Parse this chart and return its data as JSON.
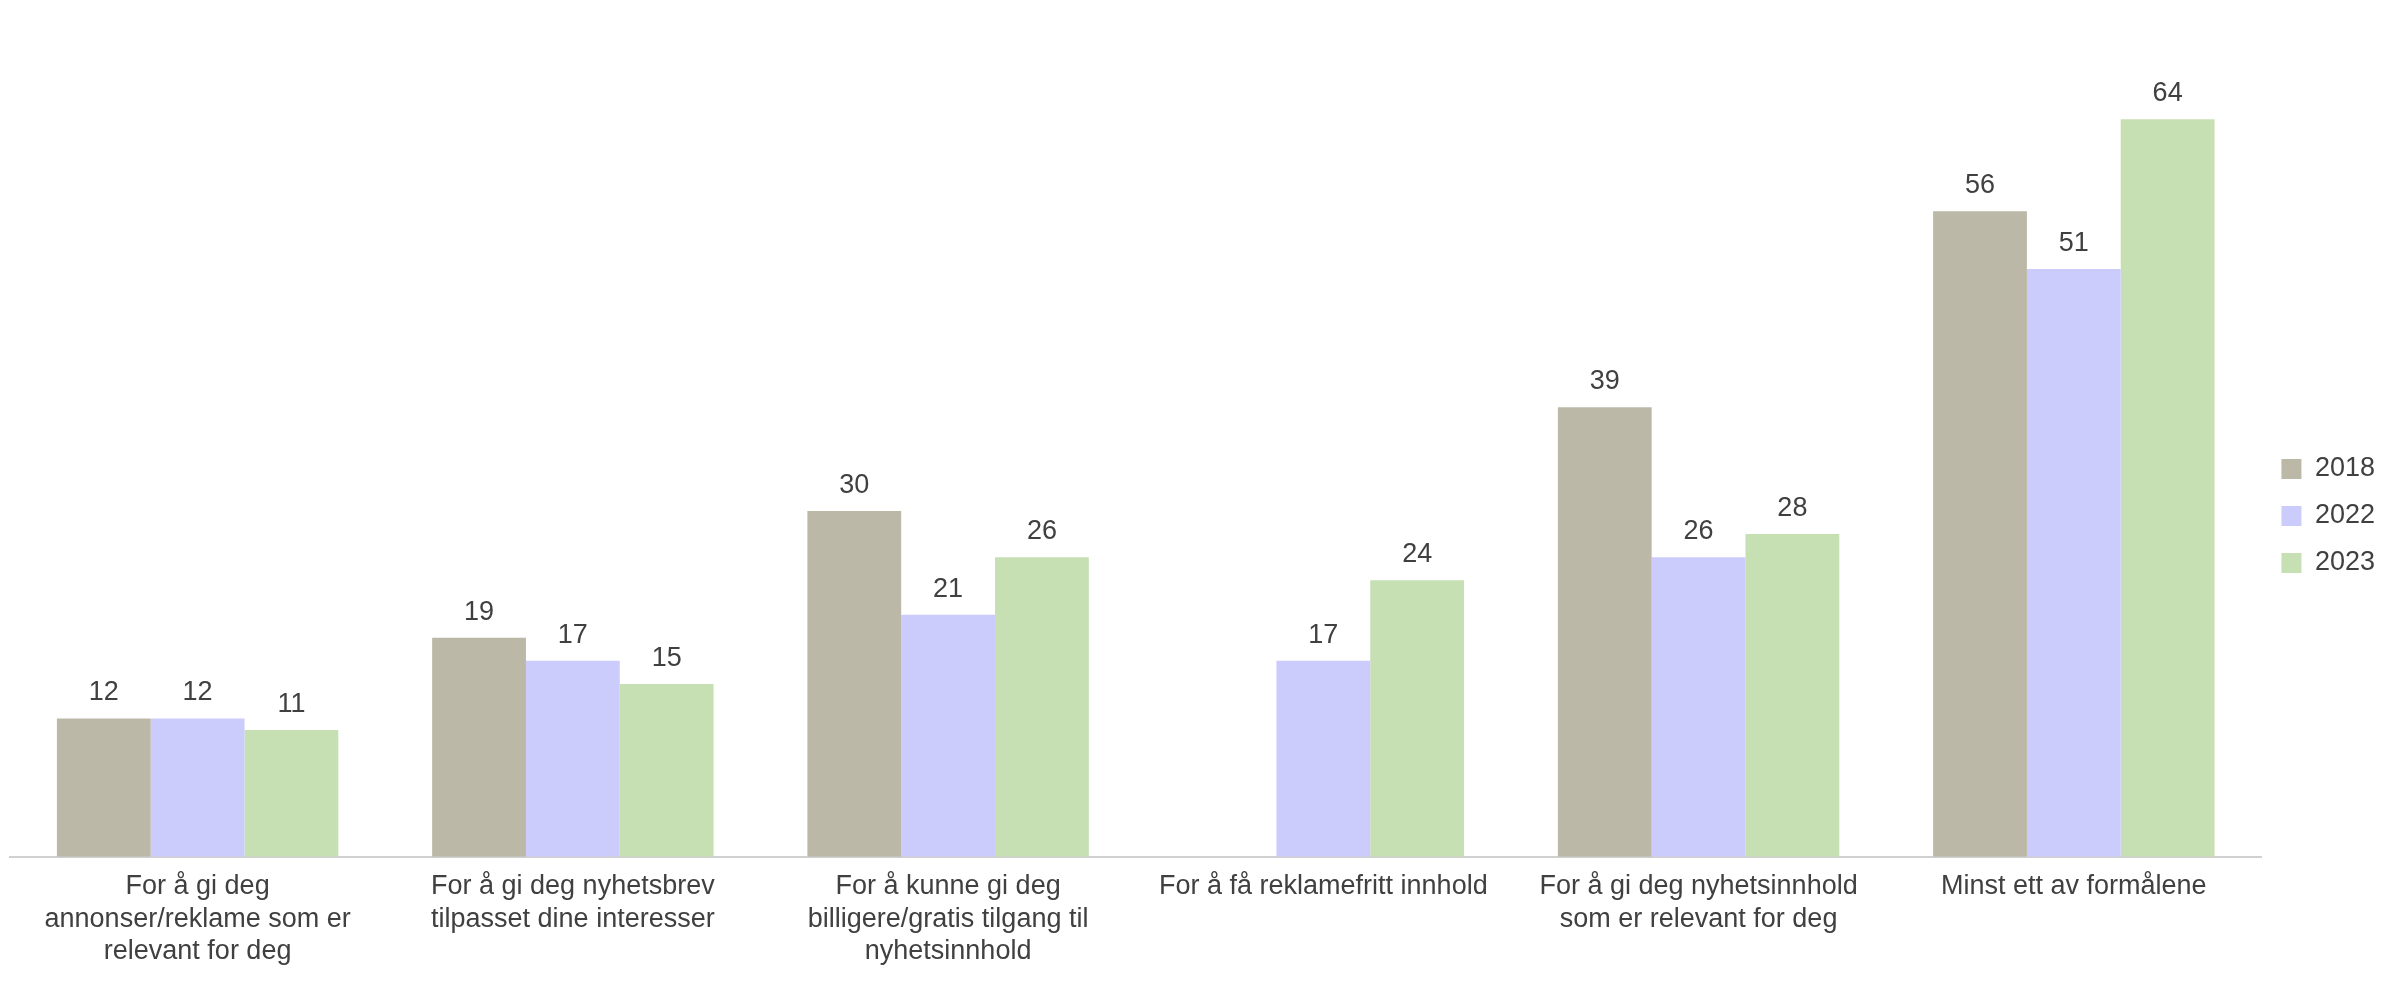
{
  "chart_data": {
    "type": "bar",
    "categories": [
      "For å gi deg annonser/reklame som er relevant for deg",
      "For å gi deg nyhetsbrev tilpasset dine interesser",
      "For å kunne gi deg billigere/gratis tilgang til nyhetsinnhold",
      "For å få reklamefritt innhold",
      "For å gi deg nyhetsinnhold som er relevant for deg",
      "Minst ett av formålene"
    ],
    "series": [
      {
        "name": "2018",
        "color": "#bcb8a8",
        "values": [
          12,
          19,
          30,
          null,
          39,
          56
        ]
      },
      {
        "name": "2022",
        "color": "#ccccfc",
        "values": [
          12,
          17,
          21,
          17,
          26,
          51
        ]
      },
      {
        "name": "2023",
        "color": "#c6e0b4",
        "values": [
          11,
          15,
          26,
          24,
          28,
          64
        ]
      }
    ],
    "data_labels": true,
    "legend": "right",
    "grid": false
  }
}
